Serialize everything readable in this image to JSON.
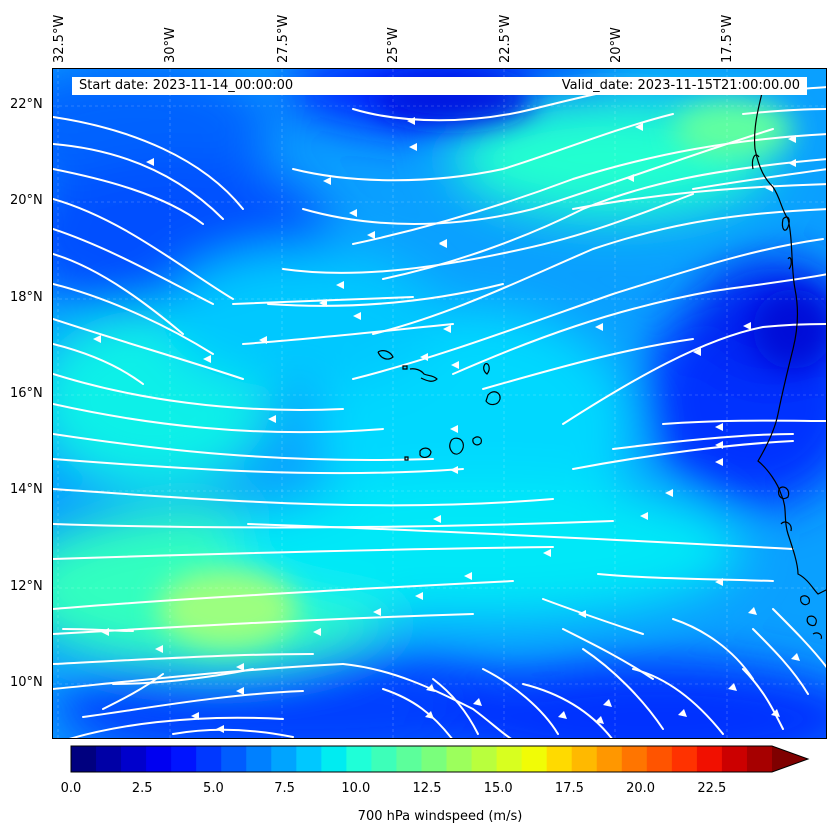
{
  "map": {
    "start_date": "Start date: 2023-11-14_00:00:00",
    "valid_date": "Valid_date: 2023-11-15T21:00:00.00",
    "lon_labels": [
      "32.5°W",
      "30°W",
      "27.5°W",
      "25°W",
      "22.5°W",
      "20°W",
      "17.5°W"
    ],
    "lat_labels": [
      "22°N",
      "20°N",
      "18°N",
      "16°N",
      "14°N",
      "12°N",
      "10°N"
    ],
    "colors": {
      "land_coast": "#000000",
      "streamline": "#ffffff",
      "wind_low": "#0a3cff",
      "wind_mid": "#00e0f0",
      "wind_high": "#9cff8c"
    }
  },
  "colorbar": {
    "label": "700 hPa windspeed (m/s)",
    "ticks": [
      "0.0",
      "2.5",
      "5.0",
      "7.5",
      "10.0",
      "12.5",
      "15.0",
      "17.5",
      "20.0",
      "22.5"
    ],
    "colors": [
      "#00007f",
      "#0000a6",
      "#0000cc",
      "#0000f1",
      "#0014ff",
      "#0038ff",
      "#005cff",
      "#0080ff",
      "#00a4ff",
      "#00c8ff",
      "#00ecf1",
      "#1fffd8",
      "#3dffb9",
      "#5cff9b",
      "#7aff7c",
      "#9cff5c",
      "#b9ff3d",
      "#d8ff1f",
      "#f1fc06",
      "#ffda00",
      "#ffb900",
      "#ff9700",
      "#ff7500",
      "#ff5400",
      "#ff3200",
      "#f11000",
      "#cc0000",
      "#a60000"
    ]
  }
}
